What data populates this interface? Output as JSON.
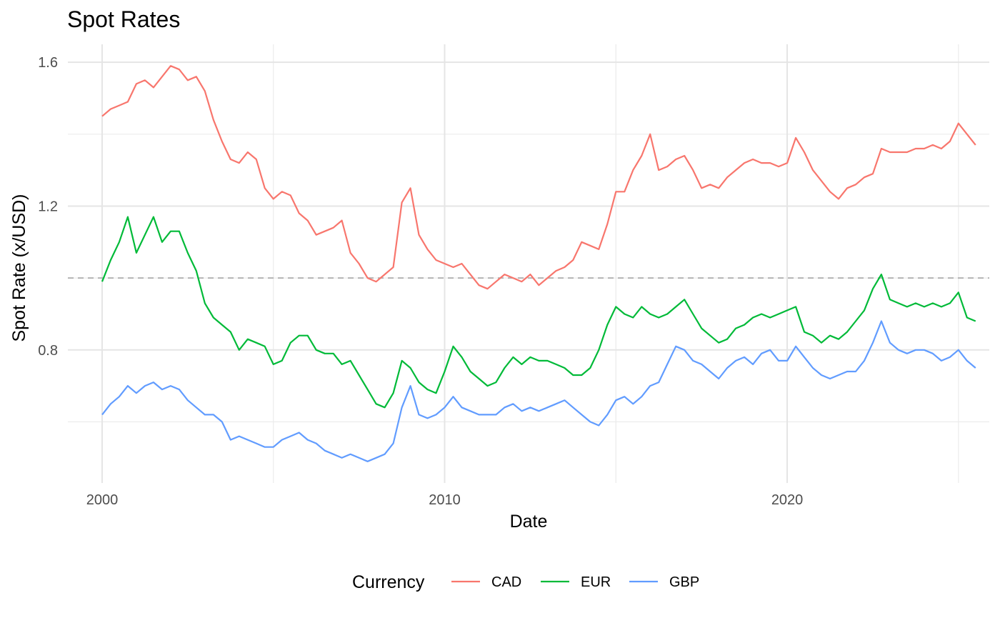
{
  "chart_data": {
    "type": "line",
    "title": "Spot Rates",
    "xlabel": "Date",
    "ylabel": "Spot Rate (x/USD)",
    "x_ticks": [
      "2000",
      "2010",
      "2020"
    ],
    "x_tick_values": [
      2000,
      2010,
      2020
    ],
    "y_ticks": [
      "0.8",
      "1.2",
      "1.6"
    ],
    "y_tick_values": [
      0.8,
      1.2,
      1.6
    ],
    "y_minor_values": [
      0.6,
      1.0,
      1.4
    ],
    "x_minor_values": [
      2005,
      2015,
      2025
    ],
    "xlim": [
      1999.0,
      2025.9
    ],
    "ylim": [
      0.43,
      1.65
    ],
    "grid": true,
    "reference_line": {
      "y": 1.0,
      "style": "dashed",
      "color": "#b3b3b3"
    },
    "legend": {
      "title": "Currency",
      "position": "bottom"
    },
    "series": [
      {
        "name": "CAD",
        "color": "#f8766d",
        "x": [
          2000.0,
          2000.25,
          2000.5,
          2000.75,
          2001.0,
          2001.25,
          2001.5,
          2001.75,
          2002.0,
          2002.25,
          2002.5,
          2002.75,
          2003.0,
          2003.25,
          2003.5,
          2003.75,
          2004.0,
          2004.25,
          2004.5,
          2004.75,
          2005.0,
          2005.25,
          2005.5,
          2005.75,
          2006.0,
          2006.25,
          2006.5,
          2006.75,
          2007.0,
          2007.25,
          2007.5,
          2007.75,
          2008.0,
          2008.25,
          2008.5,
          2008.75,
          2009.0,
          2009.25,
          2009.5,
          2009.75,
          2010.0,
          2010.25,
          2010.5,
          2010.75,
          2011.0,
          2011.25,
          2011.5,
          2011.75,
          2012.0,
          2012.25,
          2012.5,
          2012.75,
          2013.0,
          2013.25,
          2013.5,
          2013.75,
          2014.0,
          2014.25,
          2014.5,
          2014.75,
          2015.0,
          2015.25,
          2015.5,
          2015.75,
          2016.0,
          2016.25,
          2016.5,
          2016.75,
          2017.0,
          2017.25,
          2017.5,
          2017.75,
          2018.0,
          2018.25,
          2018.5,
          2018.75,
          2019.0,
          2019.25,
          2019.5,
          2019.75,
          2020.0,
          2020.25,
          2020.5,
          2020.75,
          2021.0,
          2021.25,
          2021.5,
          2021.75,
          2022.0,
          2022.25,
          2022.5,
          2022.75,
          2023.0,
          2023.25,
          2023.5,
          2023.75,
          2024.0,
          2024.25,
          2024.5,
          2024.75,
          2025.0,
          2025.25,
          2025.5
        ],
        "values": [
          1.45,
          1.47,
          1.48,
          1.49,
          1.54,
          1.55,
          1.53,
          1.56,
          1.59,
          1.58,
          1.55,
          1.56,
          1.52,
          1.44,
          1.38,
          1.33,
          1.32,
          1.35,
          1.33,
          1.25,
          1.22,
          1.24,
          1.23,
          1.18,
          1.16,
          1.12,
          1.13,
          1.14,
          1.16,
          1.07,
          1.04,
          1.0,
          0.99,
          1.01,
          1.03,
          1.21,
          1.25,
          1.12,
          1.08,
          1.05,
          1.04,
          1.03,
          1.04,
          1.01,
          0.98,
          0.97,
          0.99,
          1.01,
          1.0,
          0.99,
          1.01,
          0.98,
          1.0,
          1.02,
          1.03,
          1.05,
          1.1,
          1.09,
          1.08,
          1.15,
          1.24,
          1.24,
          1.3,
          1.34,
          1.4,
          1.3,
          1.31,
          1.33,
          1.34,
          1.3,
          1.25,
          1.26,
          1.25,
          1.28,
          1.3,
          1.32,
          1.33,
          1.32,
          1.32,
          1.31,
          1.32,
          1.39,
          1.35,
          1.3,
          1.27,
          1.24,
          1.22,
          1.25,
          1.26,
          1.28,
          1.29,
          1.36,
          1.35,
          1.35,
          1.35,
          1.36,
          1.36,
          1.37,
          1.36,
          1.38,
          1.43,
          1.4,
          1.37
        ]
      },
      {
        "name": "EUR",
        "color": "#00ba38",
        "x": [
          2000.0,
          2000.25,
          2000.5,
          2000.75,
          2001.0,
          2001.25,
          2001.5,
          2001.75,
          2002.0,
          2002.25,
          2002.5,
          2002.75,
          2003.0,
          2003.25,
          2003.5,
          2003.75,
          2004.0,
          2004.25,
          2004.5,
          2004.75,
          2005.0,
          2005.25,
          2005.5,
          2005.75,
          2006.0,
          2006.25,
          2006.5,
          2006.75,
          2007.0,
          2007.25,
          2007.5,
          2007.75,
          2008.0,
          2008.25,
          2008.5,
          2008.75,
          2009.0,
          2009.25,
          2009.5,
          2009.75,
          2010.0,
          2010.25,
          2010.5,
          2010.75,
          2011.0,
          2011.25,
          2011.5,
          2011.75,
          2012.0,
          2012.25,
          2012.5,
          2012.75,
          2013.0,
          2013.25,
          2013.5,
          2013.75,
          2014.0,
          2014.25,
          2014.5,
          2014.75,
          2015.0,
          2015.25,
          2015.5,
          2015.75,
          2016.0,
          2016.25,
          2016.5,
          2016.75,
          2017.0,
          2017.25,
          2017.5,
          2017.75,
          2018.0,
          2018.25,
          2018.5,
          2018.75,
          2019.0,
          2019.25,
          2019.5,
          2019.75,
          2020.0,
          2020.25,
          2020.5,
          2020.75,
          2021.0,
          2021.25,
          2021.5,
          2021.75,
          2022.0,
          2022.25,
          2022.5,
          2022.75,
          2023.0,
          2023.25,
          2023.5,
          2023.75,
          2024.0,
          2024.25,
          2024.5,
          2024.75,
          2025.0,
          2025.25,
          2025.5
        ],
        "values": [
          0.99,
          1.05,
          1.1,
          1.17,
          1.07,
          1.12,
          1.17,
          1.1,
          1.13,
          1.13,
          1.07,
          1.02,
          0.93,
          0.89,
          0.87,
          0.85,
          0.8,
          0.83,
          0.82,
          0.81,
          0.76,
          0.77,
          0.82,
          0.84,
          0.84,
          0.8,
          0.79,
          0.79,
          0.76,
          0.77,
          0.73,
          0.69,
          0.65,
          0.64,
          0.68,
          0.77,
          0.75,
          0.71,
          0.69,
          0.68,
          0.74,
          0.81,
          0.78,
          0.74,
          0.72,
          0.7,
          0.71,
          0.75,
          0.78,
          0.76,
          0.78,
          0.77,
          0.77,
          0.76,
          0.75,
          0.73,
          0.73,
          0.75,
          0.8,
          0.87,
          0.92,
          0.9,
          0.89,
          0.92,
          0.9,
          0.89,
          0.9,
          0.92,
          0.94,
          0.9,
          0.86,
          0.84,
          0.82,
          0.83,
          0.86,
          0.87,
          0.89,
          0.9,
          0.89,
          0.9,
          0.91,
          0.92,
          0.85,
          0.84,
          0.82,
          0.84,
          0.83,
          0.85,
          0.88,
          0.91,
          0.97,
          1.01,
          0.94,
          0.93,
          0.92,
          0.93,
          0.92,
          0.93,
          0.92,
          0.93,
          0.96,
          0.89,
          0.88
        ]
      },
      {
        "name": "GBP",
        "color": "#619cff",
        "x": [
          2000.0,
          2000.25,
          2000.5,
          2000.75,
          2001.0,
          2001.25,
          2001.5,
          2001.75,
          2002.0,
          2002.25,
          2002.5,
          2002.75,
          2003.0,
          2003.25,
          2003.5,
          2003.75,
          2004.0,
          2004.25,
          2004.5,
          2004.75,
          2005.0,
          2005.25,
          2005.5,
          2005.75,
          2006.0,
          2006.25,
          2006.5,
          2006.75,
          2007.0,
          2007.25,
          2007.5,
          2007.75,
          2008.0,
          2008.25,
          2008.5,
          2008.75,
          2009.0,
          2009.25,
          2009.5,
          2009.75,
          2010.0,
          2010.25,
          2010.5,
          2010.75,
          2011.0,
          2011.25,
          2011.5,
          2011.75,
          2012.0,
          2012.25,
          2012.5,
          2012.75,
          2013.0,
          2013.25,
          2013.5,
          2013.75,
          2014.0,
          2014.25,
          2014.5,
          2014.75,
          2015.0,
          2015.25,
          2015.5,
          2015.75,
          2016.0,
          2016.25,
          2016.5,
          2016.75,
          2017.0,
          2017.25,
          2017.5,
          2017.75,
          2018.0,
          2018.25,
          2018.5,
          2018.75,
          2019.0,
          2019.25,
          2019.5,
          2019.75,
          2020.0,
          2020.25,
          2020.5,
          2020.75,
          2021.0,
          2021.25,
          2021.5,
          2021.75,
          2022.0,
          2022.25,
          2022.5,
          2022.75,
          2023.0,
          2023.25,
          2023.5,
          2023.75,
          2024.0,
          2024.25,
          2024.5,
          2024.75,
          2025.0,
          2025.25,
          2025.5
        ],
        "values": [
          0.62,
          0.65,
          0.67,
          0.7,
          0.68,
          0.7,
          0.71,
          0.69,
          0.7,
          0.69,
          0.66,
          0.64,
          0.62,
          0.62,
          0.6,
          0.55,
          0.56,
          0.55,
          0.54,
          0.53,
          0.53,
          0.55,
          0.56,
          0.57,
          0.55,
          0.54,
          0.52,
          0.51,
          0.5,
          0.51,
          0.5,
          0.49,
          0.5,
          0.51,
          0.54,
          0.64,
          0.7,
          0.62,
          0.61,
          0.62,
          0.64,
          0.67,
          0.64,
          0.63,
          0.62,
          0.62,
          0.62,
          0.64,
          0.65,
          0.63,
          0.64,
          0.63,
          0.64,
          0.65,
          0.66,
          0.64,
          0.62,
          0.6,
          0.59,
          0.62,
          0.66,
          0.67,
          0.65,
          0.67,
          0.7,
          0.71,
          0.76,
          0.81,
          0.8,
          0.77,
          0.76,
          0.74,
          0.72,
          0.75,
          0.77,
          0.78,
          0.76,
          0.79,
          0.8,
          0.77,
          0.77,
          0.81,
          0.78,
          0.75,
          0.73,
          0.72,
          0.73,
          0.74,
          0.74,
          0.77,
          0.82,
          0.88,
          0.82,
          0.8,
          0.79,
          0.8,
          0.8,
          0.79,
          0.77,
          0.78,
          0.8,
          0.77,
          0.75
        ]
      }
    ]
  }
}
